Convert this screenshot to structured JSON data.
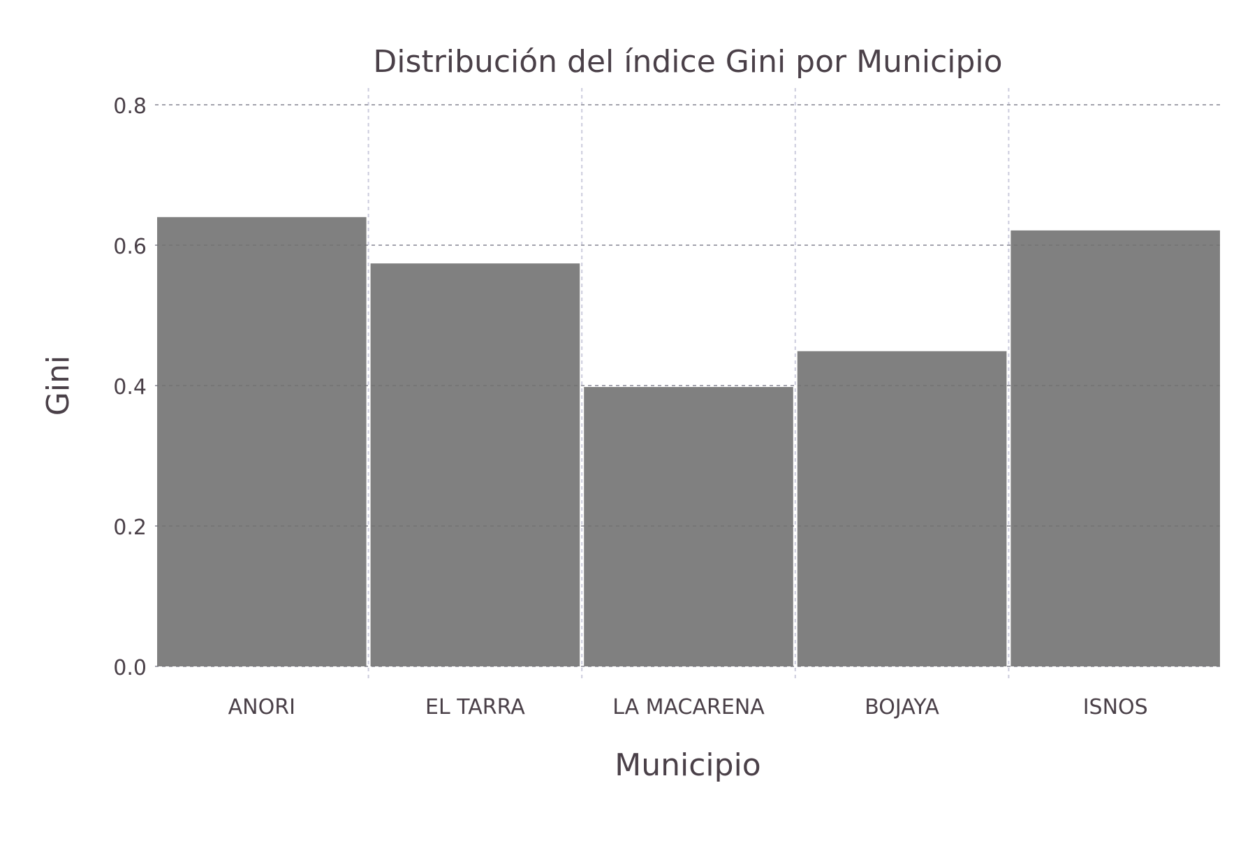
{
  "chart_data": {
    "type": "bar",
    "title": "Distribución del índice Gini por Municipio",
    "xlabel": "Municipio",
    "ylabel": "Gini",
    "categories": [
      "ANORI",
      "EL TARRA",
      "LA MACARENA",
      "BOJAYA",
      "ISNOS"
    ],
    "values": [
      0.64,
      0.574,
      0.398,
      0.449,
      0.621
    ],
    "ylim": [
      0,
      0.8
    ],
    "yticks": [
      0.0,
      0.2,
      0.4,
      0.6,
      0.8
    ],
    "ytick_labels": [
      "0.0",
      "0.2",
      "0.4",
      "0.6",
      "0.8"
    ],
    "grid": true,
    "legend": "none"
  },
  "colors": {
    "bar": "#808080",
    "grid_major": "#ccccdd",
    "grid_over_bar": "#666666",
    "text": "#4a4048",
    "title": "#4a4048"
  }
}
